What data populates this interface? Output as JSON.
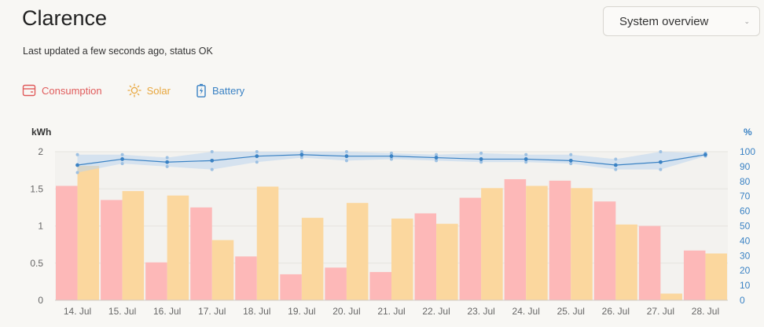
{
  "header": {
    "title": "Clarence",
    "status": "Last updated a few seconds ago, status OK"
  },
  "view_select": {
    "selected": "System overview"
  },
  "legend": [
    {
      "label": "Consumption",
      "icon": "consumption-icon",
      "color": "#e05b5b"
    },
    {
      "label": "Solar",
      "icon": "sun-icon",
      "color": "#e8a73e"
    },
    {
      "label": "Battery",
      "icon": "battery-icon",
      "color": "#3a82c4"
    }
  ],
  "chart_data": {
    "type": "bar",
    "categories": [
      "14. Jul",
      "15. Jul",
      "16. Jul",
      "17. Jul",
      "18. Jul",
      "19. Jul",
      "20. Jul",
      "21. Jul",
      "22. Jul",
      "23. Jul",
      "24. Jul",
      "25. Jul",
      "26. Jul",
      "27. Jul",
      "28. Jul"
    ],
    "series": [
      {
        "name": "Consumption",
        "axis": "left",
        "color": "#fdb8b8",
        "values": [
          1.54,
          1.35,
          0.51,
          1.25,
          0.59,
          0.35,
          0.44,
          0.38,
          1.17,
          1.38,
          1.63,
          1.61,
          1.33,
          1.0,
          0.67
        ]
      },
      {
        "name": "Solar",
        "axis": "left",
        "color": "#fbd79e",
        "values": [
          1.81,
          1.47,
          1.41,
          0.81,
          1.53,
          1.11,
          1.31,
          1.1,
          1.03,
          1.51,
          1.54,
          1.51,
          1.02,
          0.09,
          0.63
        ]
      },
      {
        "name": "Battery",
        "type": "line",
        "axis": "right",
        "color": "#3a82c4",
        "values": [
          91,
          95,
          93,
          94,
          97,
          98,
          97,
          97,
          96,
          95,
          95,
          94,
          91,
          93,
          98
        ],
        "min": [
          86,
          92,
          90,
          88,
          93,
          96,
          94,
          95,
          94,
          93,
          93,
          92,
          88,
          88,
          97
        ],
        "max": [
          98,
          98,
          96,
          100,
          100,
          100,
          100,
          99,
          98,
          99,
          98,
          98,
          95,
          100,
          99
        ]
      }
    ],
    "ylabel": "kWh",
    "ylim": [
      0,
      2
    ],
    "yticks": [
      "0",
      "0.5",
      "1",
      "1.5",
      "2"
    ],
    "y2label": "%",
    "y2lim": [
      0,
      100
    ],
    "y2ticks": [
      "0",
      "10",
      "20",
      "30",
      "40",
      "50",
      "60",
      "70",
      "80",
      "90",
      "100"
    ],
    "grid": true
  }
}
